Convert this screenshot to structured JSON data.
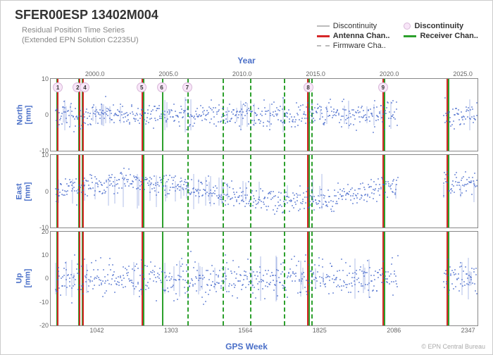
{
  "title": "SFER00ESP 13402M004",
  "subtitle_line1": "Residual Position Time Series",
  "subtitle_line2": "(Extended EPN Solution C2235U)",
  "top_axis_label": "Year",
  "bottom_axis_label": "GPS Week",
  "credit": "© EPN Central Bureau",
  "legend": {
    "discontinuity_line": "Discontinuity",
    "discontinuity_dot": "Discontinuity",
    "antenna": "Antenna Chan..",
    "receiver": "Receiver Chan..",
    "firmware": "Firmware Cha.."
  },
  "colors": {
    "scatter": "#3b5fc8",
    "antenna": "#d62728",
    "receiver": "#2ca02c",
    "firmware": "#cccccc",
    "disc_line": "#bbbbbb",
    "disc_dot_fill": "#f8e6f8",
    "axis_label": "#4a6fc8",
    "tick": "#666666"
  },
  "x_domain_week": [
    880,
    2380
  ],
  "x_domain_year": [
    1997,
    2026
  ],
  "top_ticks_year": [
    2000.0,
    2005.0,
    2010.0,
    2015.0,
    2020.0,
    2025.0
  ],
  "bottom_ticks_week": [
    1042,
    1303,
    1564,
    1825,
    2086,
    2347
  ],
  "panels": [
    {
      "id": "north",
      "label": "North\n[mm]",
      "ylim": [
        -10,
        10
      ],
      "yticks": [
        -10,
        0,
        10
      ]
    },
    {
      "id": "east",
      "label": "East\n[mm]",
      "ylim": [
        -10,
        10
      ],
      "yticks": [
        -10,
        0,
        10
      ]
    },
    {
      "id": "up",
      "label": "Up\n[mm]",
      "ylim": [
        -20,
        20
      ],
      "yticks": [
        -20,
        -10,
        0,
        10,
        20
      ]
    }
  ],
  "vlines": [
    {
      "week": 900,
      "type": "receiver"
    },
    {
      "week": 902,
      "type": "antenna"
    },
    {
      "week": 976,
      "type": "receiver"
    },
    {
      "week": 980,
      "type": "antenna"
    },
    {
      "week": 989,
      "type": "receiver"
    },
    {
      "week": 992,
      "type": "antenna"
    },
    {
      "week": 1200,
      "type": "antenna"
    },
    {
      "week": 1205,
      "type": "receiver"
    },
    {
      "week": 1270,
      "type": "receiver"
    },
    {
      "week": 1360,
      "type": "receiver_dash"
    },
    {
      "week": 1485,
      "type": "receiver_dash"
    },
    {
      "week": 1580,
      "type": "receiver_dash"
    },
    {
      "week": 1700,
      "type": "receiver_dash"
    },
    {
      "week": 1780,
      "type": "antenna"
    },
    {
      "week": 1786,
      "type": "receiver"
    },
    {
      "week": 1795,
      "type": "receiver_dash"
    },
    {
      "week": 2045,
      "type": "antenna"
    },
    {
      "week": 2050,
      "type": "receiver"
    },
    {
      "week": 2270,
      "type": "antenna"
    },
    {
      "week": 2275,
      "type": "receiver"
    }
  ],
  "discontinuities": [
    {
      "n": "1",
      "week": 905
    },
    {
      "n": "2",
      "week": 975
    },
    {
      "n": "4",
      "week": 1000
    },
    {
      "n": "5",
      "week": 1200
    },
    {
      "n": "6",
      "week": 1270
    },
    {
      "n": "7",
      "week": 1360
    },
    {
      "n": "8",
      "week": 1785
    },
    {
      "n": "9",
      "week": 2048
    }
  ],
  "scatter_band_mm": {
    "north": 3.0,
    "east": 2.8,
    "up": 6.5
  },
  "scatter_gap_week": [
    2100,
    2260
  ],
  "fontsize": {
    "title": 18,
    "subtitle": 11,
    "axis_label": 12,
    "tick": 9,
    "legend": 11
  }
}
